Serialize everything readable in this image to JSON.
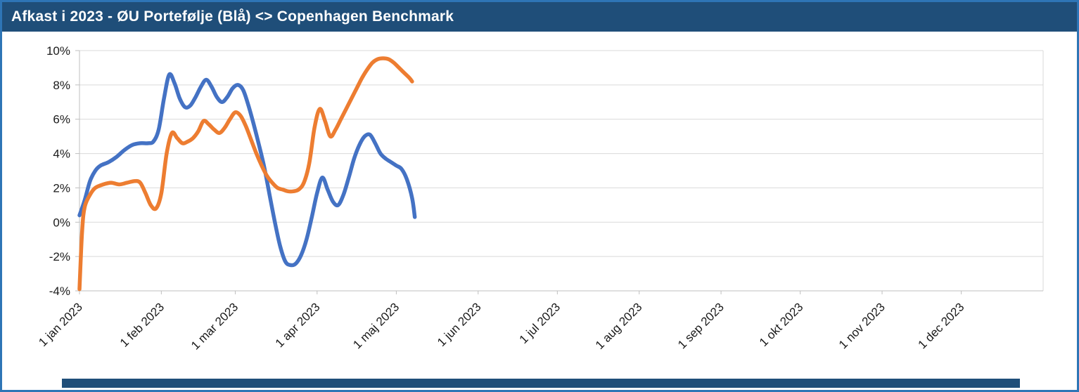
{
  "header": {
    "title": "Afkast i 2023 - ØU Portefølje (Blå) <> Copenhagen Benchmark"
  },
  "colors": {
    "frame_border": "#2E75B6",
    "header_bg": "#1F4E79",
    "header_text": "#FFFFFF",
    "grid": "#D9D9D9",
    "axis": "#BFBFBF",
    "label_text": "#1A1A1A",
    "bottom_bar": "#1F4E79",
    "series_portfolio": "#4472C4",
    "series_benchmark": "#ED7D31"
  },
  "chart_data": {
    "type": "line",
    "title": "Afkast i 2023 - ØU Portefølje (Blå) <> Copenhagen Benchmark",
    "ylabel": "",
    "xlabel": "",
    "grid": true,
    "legend": "none",
    "ylim": [
      -4,
      10
    ],
    "x_domain_days": [
      0,
      365
    ],
    "x_unit_hint": "days since 1 jan 2023",
    "y_unit": "percent",
    "y_ticks": [
      {
        "value": -4,
        "label": "-4%"
      },
      {
        "value": -2,
        "label": "-2%"
      },
      {
        "value": 0,
        "label": "0%"
      },
      {
        "value": 2,
        "label": "2%"
      },
      {
        "value": 4,
        "label": "4%"
      },
      {
        "value": 6,
        "label": "6%"
      },
      {
        "value": 8,
        "label": "8%"
      },
      {
        "value": 10,
        "label": "10%"
      }
    ],
    "x_ticks": [
      {
        "day": 0,
        "label": "1 jan 2023"
      },
      {
        "day": 31,
        "label": "1 feb 2023"
      },
      {
        "day": 59,
        "label": "1 mar 2023"
      },
      {
        "day": 90,
        "label": "1 apr 2023"
      },
      {
        "day": 120,
        "label": "1 maj 2023"
      },
      {
        "day": 151,
        "label": "1 jun 2023"
      },
      {
        "day": 181,
        "label": "1 jul 2023"
      },
      {
        "day": 212,
        "label": "1 aug 2023"
      },
      {
        "day": 243,
        "label": "1 sep 2023"
      },
      {
        "day": 273,
        "label": "1 okt 2023"
      },
      {
        "day": 304,
        "label": "1 nov 2023"
      },
      {
        "day": 334,
        "label": "1 dec 2023"
      }
    ],
    "series": [
      {
        "id": "portefolje",
        "name": "ØU Portefølje (Blå)",
        "color": "#4472C4",
        "stroke_width": 5.5,
        "points_day_pct": [
          [
            0,
            0.4
          ],
          [
            2,
            1.3
          ],
          [
            4,
            2.4
          ],
          [
            6,
            3.0
          ],
          [
            8,
            3.3
          ],
          [
            11,
            3.5
          ],
          [
            14,
            3.8
          ],
          [
            17,
            4.2
          ],
          [
            20,
            4.5
          ],
          [
            23,
            4.6
          ],
          [
            26,
            4.6
          ],
          [
            28,
            4.7
          ],
          [
            30,
            5.4
          ],
          [
            32,
            7.2
          ],
          [
            34,
            8.6
          ],
          [
            36,
            8.1
          ],
          [
            38,
            7.2
          ],
          [
            40,
            6.7
          ],
          [
            42,
            6.8
          ],
          [
            44,
            7.3
          ],
          [
            46,
            7.9
          ],
          [
            48,
            8.3
          ],
          [
            50,
            7.9
          ],
          [
            52,
            7.3
          ],
          [
            54,
            7.0
          ],
          [
            56,
            7.3
          ],
          [
            58,
            7.8
          ],
          [
            60,
            8.0
          ],
          [
            62,
            7.7
          ],
          [
            64,
            6.8
          ],
          [
            66,
            5.7
          ],
          [
            68,
            4.5
          ],
          [
            70,
            3.2
          ],
          [
            72,
            1.6
          ],
          [
            74,
            0.0
          ],
          [
            76,
            -1.4
          ],
          [
            78,
            -2.3
          ],
          [
            80,
            -2.5
          ],
          [
            82,
            -2.4
          ],
          [
            84,
            -1.9
          ],
          [
            86,
            -1.0
          ],
          [
            88,
            0.3
          ],
          [
            90,
            1.7
          ],
          [
            92,
            2.6
          ],
          [
            94,
            1.9
          ],
          [
            96,
            1.2
          ],
          [
            98,
            1.0
          ],
          [
            100,
            1.6
          ],
          [
            102,
            2.6
          ],
          [
            104,
            3.7
          ],
          [
            106,
            4.5
          ],
          [
            108,
            5.0
          ],
          [
            110,
            5.1
          ],
          [
            112,
            4.6
          ],
          [
            114,
            4.0
          ],
          [
            116,
            3.7
          ],
          [
            118,
            3.5
          ],
          [
            120,
            3.3
          ],
          [
            122,
            3.1
          ],
          [
            124,
            2.5
          ],
          [
            126,
            1.4
          ],
          [
            127,
            0.3
          ]
        ]
      },
      {
        "id": "benchmark",
        "name": "Copenhagen Benchmark",
        "color": "#ED7D31",
        "stroke_width": 5.5,
        "points_day_pct": [
          [
            0,
            -3.9
          ],
          [
            1,
            -0.5
          ],
          [
            2,
            0.9
          ],
          [
            4,
            1.6
          ],
          [
            6,
            2.0
          ],
          [
            9,
            2.2
          ],
          [
            12,
            2.3
          ],
          [
            15,
            2.2
          ],
          [
            18,
            2.3
          ],
          [
            21,
            2.4
          ],
          [
            23,
            2.3
          ],
          [
            25,
            1.7
          ],
          [
            27,
            1.0
          ],
          [
            29,
            0.8
          ],
          [
            31,
            1.7
          ],
          [
            33,
            4.0
          ],
          [
            35,
            5.2
          ],
          [
            37,
            4.9
          ],
          [
            39,
            4.6
          ],
          [
            41,
            4.7
          ],
          [
            43,
            4.9
          ],
          [
            45,
            5.3
          ],
          [
            47,
            5.9
          ],
          [
            49,
            5.7
          ],
          [
            51,
            5.4
          ],
          [
            53,
            5.2
          ],
          [
            55,
            5.5
          ],
          [
            57,
            6.0
          ],
          [
            59,
            6.4
          ],
          [
            61,
            6.2
          ],
          [
            63,
            5.6
          ],
          [
            65,
            4.8
          ],
          [
            67,
            4.0
          ],
          [
            69,
            3.3
          ],
          [
            71,
            2.7
          ],
          [
            73,
            2.3
          ],
          [
            75,
            2.0
          ],
          [
            77,
            1.9
          ],
          [
            79,
            1.8
          ],
          [
            81,
            1.8
          ],
          [
            83,
            1.9
          ],
          [
            85,
            2.3
          ],
          [
            87,
            3.4
          ],
          [
            89,
            5.5
          ],
          [
            91,
            6.6
          ],
          [
            93,
            5.9
          ],
          [
            95,
            5.0
          ],
          [
            97,
            5.4
          ],
          [
            99,
            6.0
          ],
          [
            101,
            6.6
          ],
          [
            103,
            7.2
          ],
          [
            105,
            7.8
          ],
          [
            107,
            8.4
          ],
          [
            109,
            8.9
          ],
          [
            111,
            9.3
          ],
          [
            113,
            9.5
          ],
          [
            115,
            9.55
          ],
          [
            117,
            9.5
          ],
          [
            119,
            9.3
          ],
          [
            121,
            9.0
          ],
          [
            123,
            8.7
          ],
          [
            125,
            8.4
          ],
          [
            126,
            8.2
          ]
        ]
      }
    ]
  }
}
